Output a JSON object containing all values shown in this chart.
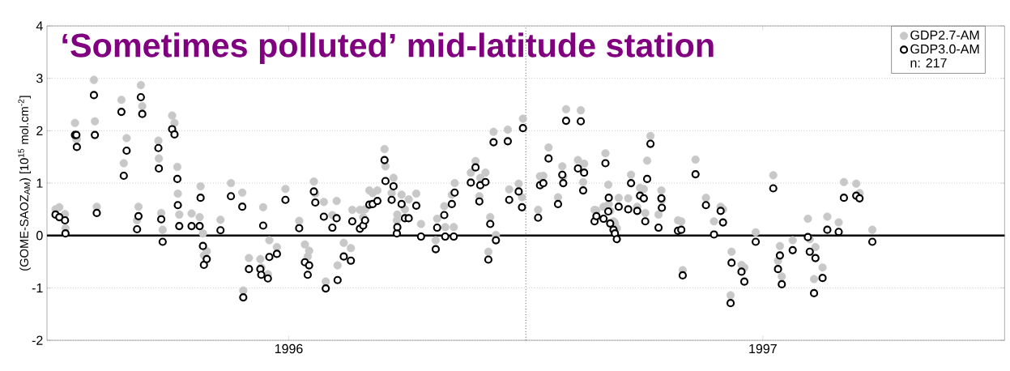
{
  "chart_data": {
    "type": "scatter",
    "title": "‘Sometimes polluted’ mid-latitude station",
    "ylabel": "(GOME-SAOZ$_{AM}$) [10$^{15}$ mol.cm$^{-2}$]",
    "x": [
      1995.508,
      1995.516,
      1995.528,
      1995.529,
      1995.549,
      1995.552,
      1995.553,
      1995.589,
      1995.591,
      1995.595,
      1995.647,
      1995.652,
      1995.658,
      1995.68,
      1995.683,
      1995.688,
      1995.691,
      1995.725,
      1995.726,
      1995.731,
      1995.734,
      1995.754,
      1995.759,
      1995.765,
      1995.766,
      1995.769,
      1995.795,
      1995.812,
      1995.814,
      1995.819,
      1995.821,
      1995.827,
      1995.856,
      1995.878,
      1995.902,
      1995.904,
      1995.916,
      1995.94,
      1995.942,
      1995.946,
      1995.956,
      1995.959,
      1995.975,
      1995.993,
      1996.022,
      1996.034,
      1996.04,
      1996.043,
      1996.053,
      1996.056,
      1996.074,
      1996.078,
      1996.092,
      1996.101,
      1996.103,
      1996.116,
      1996.131,
      1996.134,
      1996.15,
      1996.157,
      1996.161,
      1996.17,
      1996.177,
      1996.187,
      1996.202,
      1996.204,
      1996.217,
      1996.221,
      1996.228,
      1996.229,
      1996.238,
      1996.245,
      1996.253,
      1996.269,
      1996.279,
      1996.31,
      1996.313,
      1996.328,
      1996.33,
      1996.344,
      1996.348,
      1996.35,
      1996.384,
      1996.394,
      1996.402,
      1996.404,
      1996.415,
      1996.421,
      1996.425,
      1996.432,
      1996.437,
      1996.462,
      1996.465,
      1996.485,
      1996.492,
      1996.494,
      1996.526,
      1996.53,
      1996.537,
      1996.548,
      1996.568,
      1996.577,
      1996.579,
      1996.585,
      1996.61,
      1996.616,
      1996.621,
      1996.623,
      1996.645,
      1996.649,
      1996.664,
      1996.668,
      1996.674,
      1996.675,
      1996.678,
      1996.685,
      1996.688,
      1996.692,
      1996.696,
      1996.716,
      1996.722,
      1996.735,
      1996.741,
      1996.749,
      1996.752,
      1996.756,
      1996.763,
      1996.78,
      1996.786,
      1996.787,
      1996.821,
      1996.828,
      1996.831,
      1996.858,
      1996.88,
      1996.897,
      1996.911,
      1996.916,
      1996.932,
      1996.934,
      1996.955,
      1996.961,
      1996.985,
      1997.022,
      1997.032,
      1997.036,
      1997.04,
      1997.063,
      1997.095,
      1997.099,
      1997.108,
      1997.111,
      1997.126,
      1997.136,
      1997.16,
      1997.171,
      1997.197,
      1997.204,
      1997.231
    ],
    "series": [
      {
        "name": "GDP2.7-AM",
        "color": "#c8c8c8",
        "values": [
          0.5,
          0.54,
          0.41,
          0.14,
          2.15,
          1.84,
          1.84,
          2.97,
          2.18,
          0.55,
          2.59,
          1.38,
          1.86,
          0.29,
          0.55,
          2.87,
          2.47,
          1.81,
          1.47,
          0.43,
          0.11,
          2.29,
          2.15,
          1.31,
          0.8,
          0.4,
          0.42,
          0.35,
          0.94,
          0.04,
          -0.38,
          -0.3,
          0.3,
          1.0,
          0.82,
          -1.05,
          -0.43,
          -0.45,
          -0.61,
          0.54,
          -0.74,
          -0.09,
          -0.22,
          0.89,
          0.28,
          -0.17,
          -0.4,
          -0.29,
          1.03,
          0.8,
          0.64,
          -0.88,
          0.39,
          0.66,
          -0.57,
          -0.14,
          -0.24,
          0.49,
          0.49,
          0.35,
          0.5,
          0.86,
          0.81,
          0.86,
          1.65,
          1.32,
          0.81,
          1.1,
          0.29,
          0.4,
          0.78,
          0.5,
          0.69,
          0.8,
          0.22,
          -0.09,
          0.32,
          0.56,
          0.16,
          0.78,
          0.16,
          1.0,
          1.2,
          1.42,
          0.75,
          1.1,
          1.2,
          -0.31,
          0.35,
          1.98,
          0.01,
          2.02,
          0.88,
          0.99,
          0.73,
          2.23,
          0.49,
          1.13,
          1.14,
          1.68,
          0.73,
          1.32,
          1.13,
          2.41,
          1.44,
          2.39,
          1.02,
          1.37,
          0.49,
          0.48,
          0.55,
          1.57,
          0.97,
          0.6,
          0.47,
          0.27,
          0.24,
          0.14,
          0.72,
          0.71,
          1.16,
          0.55,
          0.91,
          0.89,
          0.43,
          1.43,
          1.9,
          0.4,
          0.86,
          0.68,
          0.29,
          0.27,
          -0.66,
          1.45,
          0.72,
          0.27,
          0.55,
          0.5,
          -1.14,
          -0.31,
          -0.56,
          -0.61,
          0.06,
          1.15,
          -0.48,
          -0.2,
          -0.78,
          -0.09,
          0.32,
          -0.07,
          -0.83,
          -0.22,
          -0.61,
          0.36,
          0.25,
          1.02,
          0.99,
          0.81,
          0.11
        ]
      },
      {
        "name": "GDP3.0-AM",
        "color": "#000000",
        "values": [
          0.4,
          0.35,
          0.29,
          0.04,
          1.92,
          1.92,
          1.69,
          2.68,
          1.92,
          0.43,
          2.36,
          1.14,
          1.62,
          0.12,
          0.37,
          2.64,
          2.32,
          1.67,
          1.28,
          0.31,
          -0.12,
          2.03,
          1.93,
          1.08,
          0.58,
          0.18,
          0.18,
          0.18,
          0.72,
          -0.2,
          -0.56,
          -0.45,
          0.1,
          0.75,
          0.55,
          -1.18,
          -0.64,
          -0.64,
          -0.75,
          0.19,
          -0.82,
          -0.41,
          -0.35,
          0.68,
          0.14,
          -0.51,
          -0.75,
          -0.57,
          0.84,
          0.63,
          0.36,
          -1.01,
          0.15,
          0.33,
          -0.85,
          -0.4,
          -0.48,
          0.27,
          0.13,
          0.19,
          0.29,
          0.59,
          0.6,
          0.66,
          1.44,
          1.04,
          0.68,
          0.94,
          0.04,
          0.16,
          0.6,
          0.33,
          0.33,
          0.57,
          -0.02,
          -0.26,
          0.15,
          0.39,
          -0.02,
          0.6,
          -0.02,
          0.82,
          1.01,
          1.3,
          0.65,
          0.96,
          1.02,
          -0.46,
          0.22,
          1.78,
          -0.09,
          1.8,
          0.68,
          0.84,
          0.54,
          2.05,
          0.34,
          0.96,
          1.0,
          1.47,
          0.6,
          1.16,
          1.0,
          2.19,
          1.28,
          2.18,
          0.86,
          1.2,
          0.27,
          0.37,
          0.32,
          1.38,
          0.46,
          0.72,
          0.23,
          0.11,
          0.04,
          -0.07,
          0.55,
          0.5,
          1.0,
          0.47,
          0.76,
          0.71,
          0.27,
          1.08,
          1.75,
          0.15,
          0.71,
          0.53,
          0.09,
          0.11,
          -0.76,
          1.17,
          0.58,
          0.02,
          0.47,
          0.25,
          -1.29,
          -0.52,
          -0.69,
          -0.88,
          -0.12,
          0.9,
          -0.64,
          -0.38,
          -0.93,
          -0.28,
          -0.03,
          -0.31,
          -1.1,
          -0.43,
          -0.81,
          0.11,
          0.07,
          0.72,
          0.76,
          0.71,
          -0.12
        ]
      }
    ],
    "annotations": [
      "n: 217"
    ],
    "xlim": [
      1995.49,
      1997.51
    ],
    "xticks": [
      {
        "value": 1996,
        "label": "1996"
      },
      {
        "value": 1997,
        "label": "1997"
      }
    ],
    "ylim": [
      -2,
      4
    ],
    "yticks": [
      -2,
      -1,
      0,
      1,
      2,
      3,
      4
    ],
    "ref_lines": [
      {
        "axis": "y",
        "value": 0,
        "color": "#000000",
        "line_style": "solid"
      },
      {
        "axis": "x",
        "value": 1996.5,
        "color": "#000000",
        "line_style": "dotted"
      }
    ],
    "grid": "y",
    "legend": "top right"
  }
}
